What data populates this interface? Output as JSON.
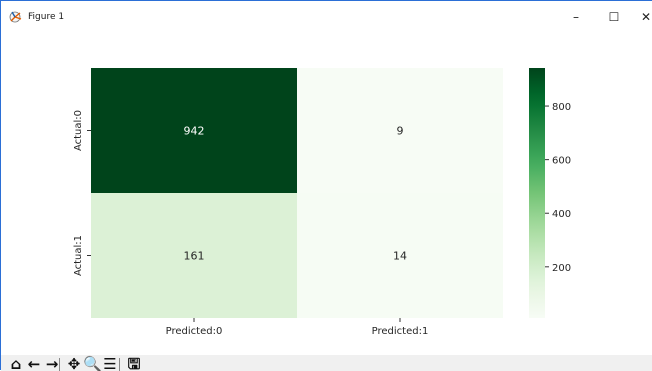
{
  "window": {
    "title": "Figure 1",
    "minimize_glyph": "–",
    "maximize_glyph": "☐",
    "close_glyph": "✕"
  },
  "toolbar": {
    "items": [
      {
        "name": "home-icon",
        "glyph": "⌂"
      },
      {
        "name": "back-icon",
        "glyph": "←"
      },
      {
        "name": "forward-icon",
        "glyph": "→"
      },
      {
        "name": "pan-icon",
        "glyph": "✥"
      },
      {
        "name": "zoom-icon",
        "glyph": "🔍"
      },
      {
        "name": "configure-subplots-icon",
        "glyph": "☰"
      },
      {
        "name": "save-icon",
        "glyph": "🖫"
      }
    ]
  },
  "chart_data": {
    "type": "heatmap",
    "title": "",
    "xlabel": "",
    "ylabel": "",
    "x_categories": [
      "Predicted:0",
      "Predicted:1"
    ],
    "y_categories": [
      "Actual:0",
      "Actual:1"
    ],
    "values": [
      [
        942,
        9
      ],
      [
        161,
        14
      ]
    ],
    "colormap": "Greens",
    "colormap_colors": {
      "low": "#f7fcf5",
      "high": "#00441b"
    },
    "colorbar": {
      "min": 9,
      "max": 942,
      "ticks": [
        200,
        400,
        600,
        800
      ]
    },
    "annotation_colors": {
      "light": "#ffffff",
      "dark": "#262626"
    }
  }
}
